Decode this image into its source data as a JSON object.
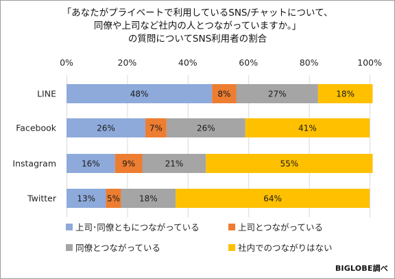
{
  "chart_data": {
    "type": "bar",
    "orientation": "horizontal",
    "stacked": true,
    "title_lines": [
      "「あなたがプライベートで利用しているSNS/チャットについて、",
      "同僚や上司など社内の人とつながっていますか。」",
      "の質問についてSNS利用者の割合"
    ],
    "categories": [
      "LINE",
      "Facebook",
      "Instagram",
      "Twitter"
    ],
    "series": [
      {
        "name": "上司･同僚ともにつながっている",
        "color": "#8eaadb",
        "values": [
          48,
          26,
          16,
          13
        ]
      },
      {
        "name": "上司とつながっている",
        "color": "#ed7d31",
        "values": [
          8,
          7,
          9,
          5
        ]
      },
      {
        "name": "同僚とつながっている",
        "color": "#a5a5a5",
        "values": [
          27,
          26,
          21,
          18
        ]
      },
      {
        "name": "社内でのつながりはない",
        "color": "#ffc000",
        "values": [
          18,
          41,
          55,
          64
        ]
      }
    ],
    "xlim": [
      0,
      100
    ],
    "xticks": [
      "0%",
      "20%",
      "40%",
      "60%",
      "80%",
      "100%"
    ],
    "value_suffix": "%",
    "grid": true,
    "legend_position": "bottom"
  },
  "credit": "BIGLOBE調べ"
}
